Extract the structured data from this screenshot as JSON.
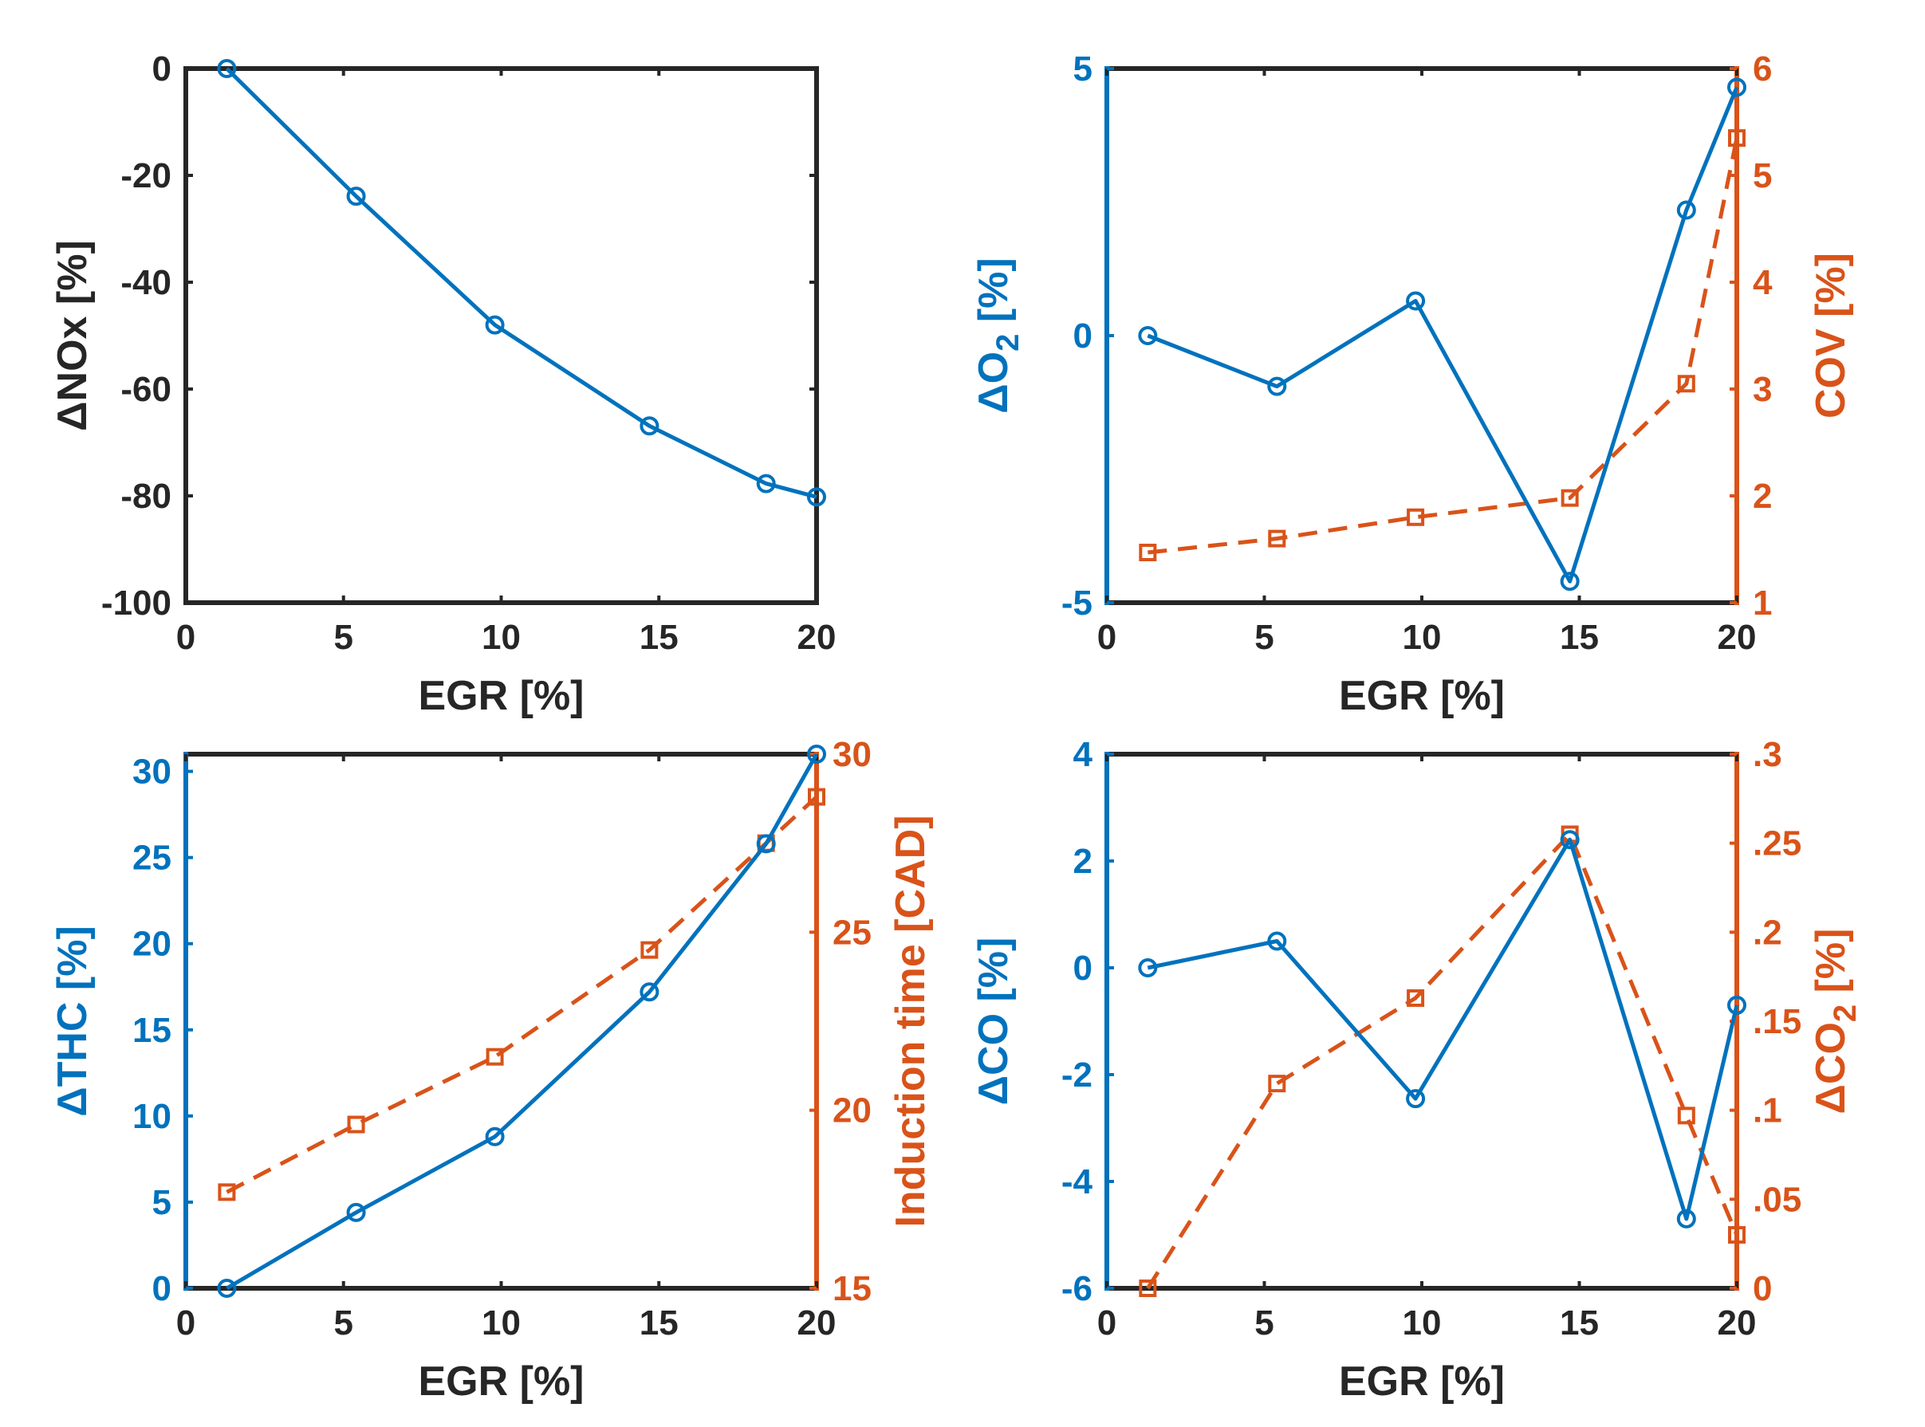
{
  "colors": {
    "blue": "#0072BD",
    "orange": "#D95319",
    "frame": "#262626"
  },
  "chart_data": [
    {
      "type": "line",
      "title": "",
      "xlabel": "EGR [%]",
      "xlim": [
        0,
        20
      ],
      "xticks": [
        0,
        5,
        10,
        15,
        20
      ],
      "left": {
        "ylabel": "ΔNOx [%]",
        "ylabel_main": "ΔNOx [%]",
        "ylabel_sub": "",
        "ylabel_tail": "",
        "ylim": [
          -100,
          0
        ],
        "yticks": [
          0,
          -20,
          -40,
          -60,
          -80,
          -100
        ],
        "color": "frame",
        "series": {
          "name": "ΔNOx",
          "marker": "circle",
          "line": "solid",
          "color": "blue",
          "x": [
            1.3,
            5.4,
            9.8,
            14.7,
            18.4,
            20
          ],
          "y": [
            0,
            -23.9,
            -48,
            -66.9,
            -77.7,
            -80.2
          ]
        }
      }
    },
    {
      "type": "line",
      "title": "",
      "xlabel": "EGR [%]",
      "xlim": [
        0,
        20
      ],
      "xticks": [
        0,
        5,
        10,
        15,
        20
      ],
      "left": {
        "ylabel": "ΔO2 [%]",
        "ylabel_main": "ΔO",
        "ylabel_sub": "2",
        "ylabel_tail": " [%]",
        "ylim": [
          -5,
          5
        ],
        "yticks": [
          5,
          0,
          -5
        ],
        "color": "blue",
        "series": {
          "name": "ΔO2",
          "marker": "circle",
          "line": "solid",
          "color": "blue",
          "x": [
            1.3,
            5.4,
            9.8,
            14.7,
            18.4,
            20
          ],
          "y": [
            0,
            -0.95,
            0.65,
            -4.6,
            2.35,
            4.65
          ]
        }
      },
      "right": {
        "ylabel": "COV [%]",
        "ylabel_main": "COV [%]",
        "ylabel_sub": "",
        "ylabel_tail": "",
        "ylim": [
          1,
          6
        ],
        "yticks": [
          1,
          2,
          3,
          4,
          5,
          6
        ],
        "color": "orange",
        "series": {
          "name": "COV",
          "marker": "square",
          "line": "dashed",
          "color": "orange",
          "x": [
            1.3,
            5.4,
            9.8,
            14.7,
            18.4,
            20
          ],
          "y": [
            1.47,
            1.6,
            1.8,
            1.98,
            3.05,
            5.35
          ]
        }
      }
    },
    {
      "type": "line",
      "title": "",
      "xlabel": "EGR [%]",
      "xlim": [
        0,
        20
      ],
      "xticks": [
        0,
        5,
        10,
        15,
        20
      ],
      "left": {
        "ylabel": "ΔTHC [%]",
        "ylabel_main": "ΔTHC [%]",
        "ylabel_sub": "",
        "ylabel_tail": "",
        "ylim": [
          0,
          31
        ],
        "yticks": [
          0,
          5,
          10,
          15,
          20,
          25,
          30
        ],
        "color": "blue",
        "series": {
          "name": "ΔTHC",
          "marker": "circle",
          "line": "solid",
          "color": "blue",
          "x": [
            1.3,
            5.4,
            9.8,
            14.7,
            18.4,
            20
          ],
          "y": [
            0,
            4.4,
            8.8,
            17.2,
            25.8,
            31
          ]
        }
      },
      "right": {
        "ylabel": "Induction time [CAD]",
        "ylabel_main": "Induction time [CAD]",
        "ylabel_sub": "",
        "ylabel_tail": "",
        "ylim": [
          15,
          30
        ],
        "yticks": [
          15,
          20,
          25,
          30
        ],
        "color": "orange",
        "series": {
          "name": "Induction time",
          "marker": "square",
          "line": "dashed",
          "color": "orange",
          "x": [
            1.3,
            5.4,
            9.8,
            14.7,
            18.4,
            20
          ],
          "y": [
            17.7,
            19.6,
            21.5,
            24.5,
            27.5,
            28.8
          ]
        }
      }
    },
    {
      "type": "line",
      "title": "",
      "xlabel": "EGR [%]",
      "xlim": [
        0,
        20
      ],
      "xticks": [
        0,
        5,
        10,
        15,
        20
      ],
      "left": {
        "ylabel": "ΔCO [%]",
        "ylabel_main": "ΔCO [%]",
        "ylabel_sub": "",
        "ylabel_tail": "",
        "ylim": [
          -6,
          4
        ],
        "yticks": [
          4,
          2,
          0,
          -2,
          -4,
          -6
        ],
        "color": "blue",
        "series": {
          "name": "ΔCO",
          "marker": "circle",
          "line": "solid",
          "color": "blue",
          "x": [
            1.3,
            5.4,
            9.8,
            14.7,
            18.4,
            20
          ],
          "y": [
            0,
            0.5,
            -2.45,
            2.4,
            -4.7,
            -0.7
          ]
        }
      },
      "right": {
        "ylabel": "ΔCO2 [%]",
        "ylabel_main": "ΔCO",
        "ylabel_sub": "2",
        "ylabel_tail": " [%]",
        "ylim": [
          0,
          0.3
        ],
        "yticks": [
          0,
          0.05,
          0.1,
          0.15,
          0.2,
          0.25,
          0.3
        ],
        "color": "orange",
        "series": {
          "name": "ΔCO2",
          "marker": "square",
          "line": "dashed",
          "color": "orange",
          "x": [
            1.3,
            5.4,
            9.8,
            14.7,
            18.4,
            20
          ],
          "y": [
            0,
            0.115,
            0.163,
            0.255,
            0.097,
            0.03
          ]
        }
      }
    }
  ]
}
